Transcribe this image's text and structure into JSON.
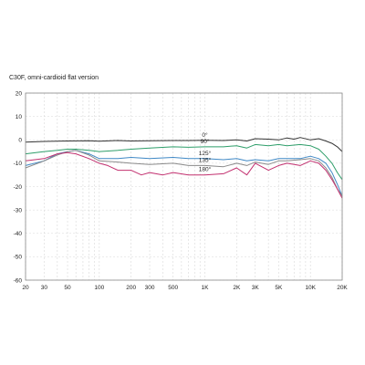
{
  "chart_data": {
    "type": "line",
    "title": "C30F, omni-cardioid flat version",
    "xlabel": "",
    "ylabel": "",
    "x_scale": "log",
    "xlim": [
      20,
      20000
    ],
    "ylim": [
      -60,
      20
    ],
    "grid": true,
    "y_ticks": [
      20,
      10,
      0,
      -10,
      -20,
      -30,
      -40,
      -50,
      -60
    ],
    "x_ticks": [
      {
        "value": 20,
        "label": "20"
      },
      {
        "value": 30,
        "label": "30"
      },
      {
        "value": 50,
        "label": "50"
      },
      {
        "value": 100,
        "label": "100"
      },
      {
        "value": 200,
        "label": "200"
      },
      {
        "value": 300,
        "label": "300"
      },
      {
        "value": 500,
        "label": "500"
      },
      {
        "value": 1000,
        "label": "1K"
      },
      {
        "value": 2000,
        "label": "2K"
      },
      {
        "value": 3000,
        "label": "3K"
      },
      {
        "value": 5000,
        "label": "5K"
      },
      {
        "value": 10000,
        "label": "10K"
      },
      {
        "value": 20000,
        "label": "20K"
      }
    ],
    "series": [
      {
        "name": "0°",
        "color": "#333333",
        "label_at": 1000,
        "label_dy": -4,
        "x": [
          20,
          30,
          50,
          80,
          100,
          150,
          200,
          300,
          500,
          700,
          1000,
          1500,
          2000,
          2500,
          3000,
          4000,
          5000,
          6000,
          7000,
          8000,
          10000,
          12000,
          14000,
          16000,
          18000,
          20000
        ],
        "y": [
          -1,
          -0.7,
          -0.5,
          -0.4,
          -0.6,
          -0.3,
          -0.5,
          -0.4,
          -0.3,
          -0.3,
          -0.2,
          -0.3,
          0,
          -0.5,
          0.5,
          0.3,
          0,
          0.8,
          0.3,
          1,
          0,
          0.5,
          -0.5,
          -1.5,
          -3,
          -5
        ]
      },
      {
        "name": "90°",
        "color": "#2e9e6a",
        "label_at": 1000,
        "label_dy": -4,
        "x": [
          20,
          30,
          40,
          50,
          60,
          80,
          100,
          150,
          200,
          300,
          500,
          700,
          1000,
          1500,
          2000,
          2500,
          3000,
          4000,
          5000,
          6000,
          8000,
          10000,
          12000,
          14000,
          16000,
          18000,
          20000
        ],
        "y": [
          -6,
          -5,
          -4.5,
          -4,
          -4,
          -4.5,
          -5,
          -4.5,
          -4,
          -3.5,
          -3,
          -3.2,
          -3,
          -3,
          -2.5,
          -3.5,
          -2,
          -2.5,
          -2,
          -2.5,
          -2,
          -2.5,
          -4,
          -7,
          -10,
          -14,
          -17
        ]
      },
      {
        "name": "125°",
        "color": "#3f88c5",
        "label_at": 1000,
        "label_dy": -4,
        "x": [
          20,
          30,
          40,
          50,
          60,
          80,
          100,
          150,
          200,
          300,
          500,
          700,
          1000,
          1500,
          2000,
          2500,
          3000,
          4000,
          5000,
          6000,
          8000,
          10000,
          12000,
          14000,
          16000,
          18000,
          20000
        ],
        "y": [
          -11,
          -9,
          -6,
          -5,
          -4.5,
          -6,
          -8,
          -8,
          -7.5,
          -8,
          -7.5,
          -8,
          -8,
          -8.5,
          -8,
          -9,
          -8.5,
          -9,
          -8,
          -8,
          -8,
          -7,
          -8,
          -10,
          -14,
          -19,
          -24
        ]
      },
      {
        "name": "135°",
        "color": "#8a8a8a",
        "label_at": 1000,
        "label_dy": -4,
        "x": [
          20,
          30,
          40,
          50,
          60,
          80,
          100,
          150,
          200,
          300,
          500,
          700,
          1000,
          1500,
          2000,
          2500,
          3000,
          4000,
          5000,
          6000,
          8000,
          10000,
          12000,
          14000,
          16000,
          18000,
          20000
        ],
        "y": [
          -12,
          -9,
          -6.5,
          -5,
          -4.5,
          -6.5,
          -9,
          -9.5,
          -10,
          -10.5,
          -10,
          -11,
          -11,
          -11.5,
          -10,
          -11,
          -9.5,
          -10.5,
          -9,
          -9,
          -8.5,
          -8,
          -9,
          -12,
          -16,
          -21,
          -24
        ]
      },
      {
        "name": "180°",
        "color": "#c2306f",
        "label_at": 1000,
        "label_dy": -4,
        "x": [
          20,
          30,
          40,
          50,
          60,
          80,
          100,
          120,
          150,
          200,
          250,
          300,
          400,
          500,
          700,
          1000,
          1500,
          2000,
          2500,
          3000,
          4000,
          5000,
          6000,
          8000,
          10000,
          12000,
          14000,
          16000,
          18000,
          20000
        ],
        "y": [
          -9,
          -8,
          -6,
          -5.5,
          -6,
          -8,
          -10,
          -11,
          -13,
          -13,
          -15,
          -14,
          -15,
          -14,
          -15,
          -15,
          -14.5,
          -12,
          -15,
          -10,
          -13,
          -11,
          -10,
          -11,
          -9,
          -10,
          -13,
          -17,
          -21,
          -25
        ]
      }
    ]
  }
}
